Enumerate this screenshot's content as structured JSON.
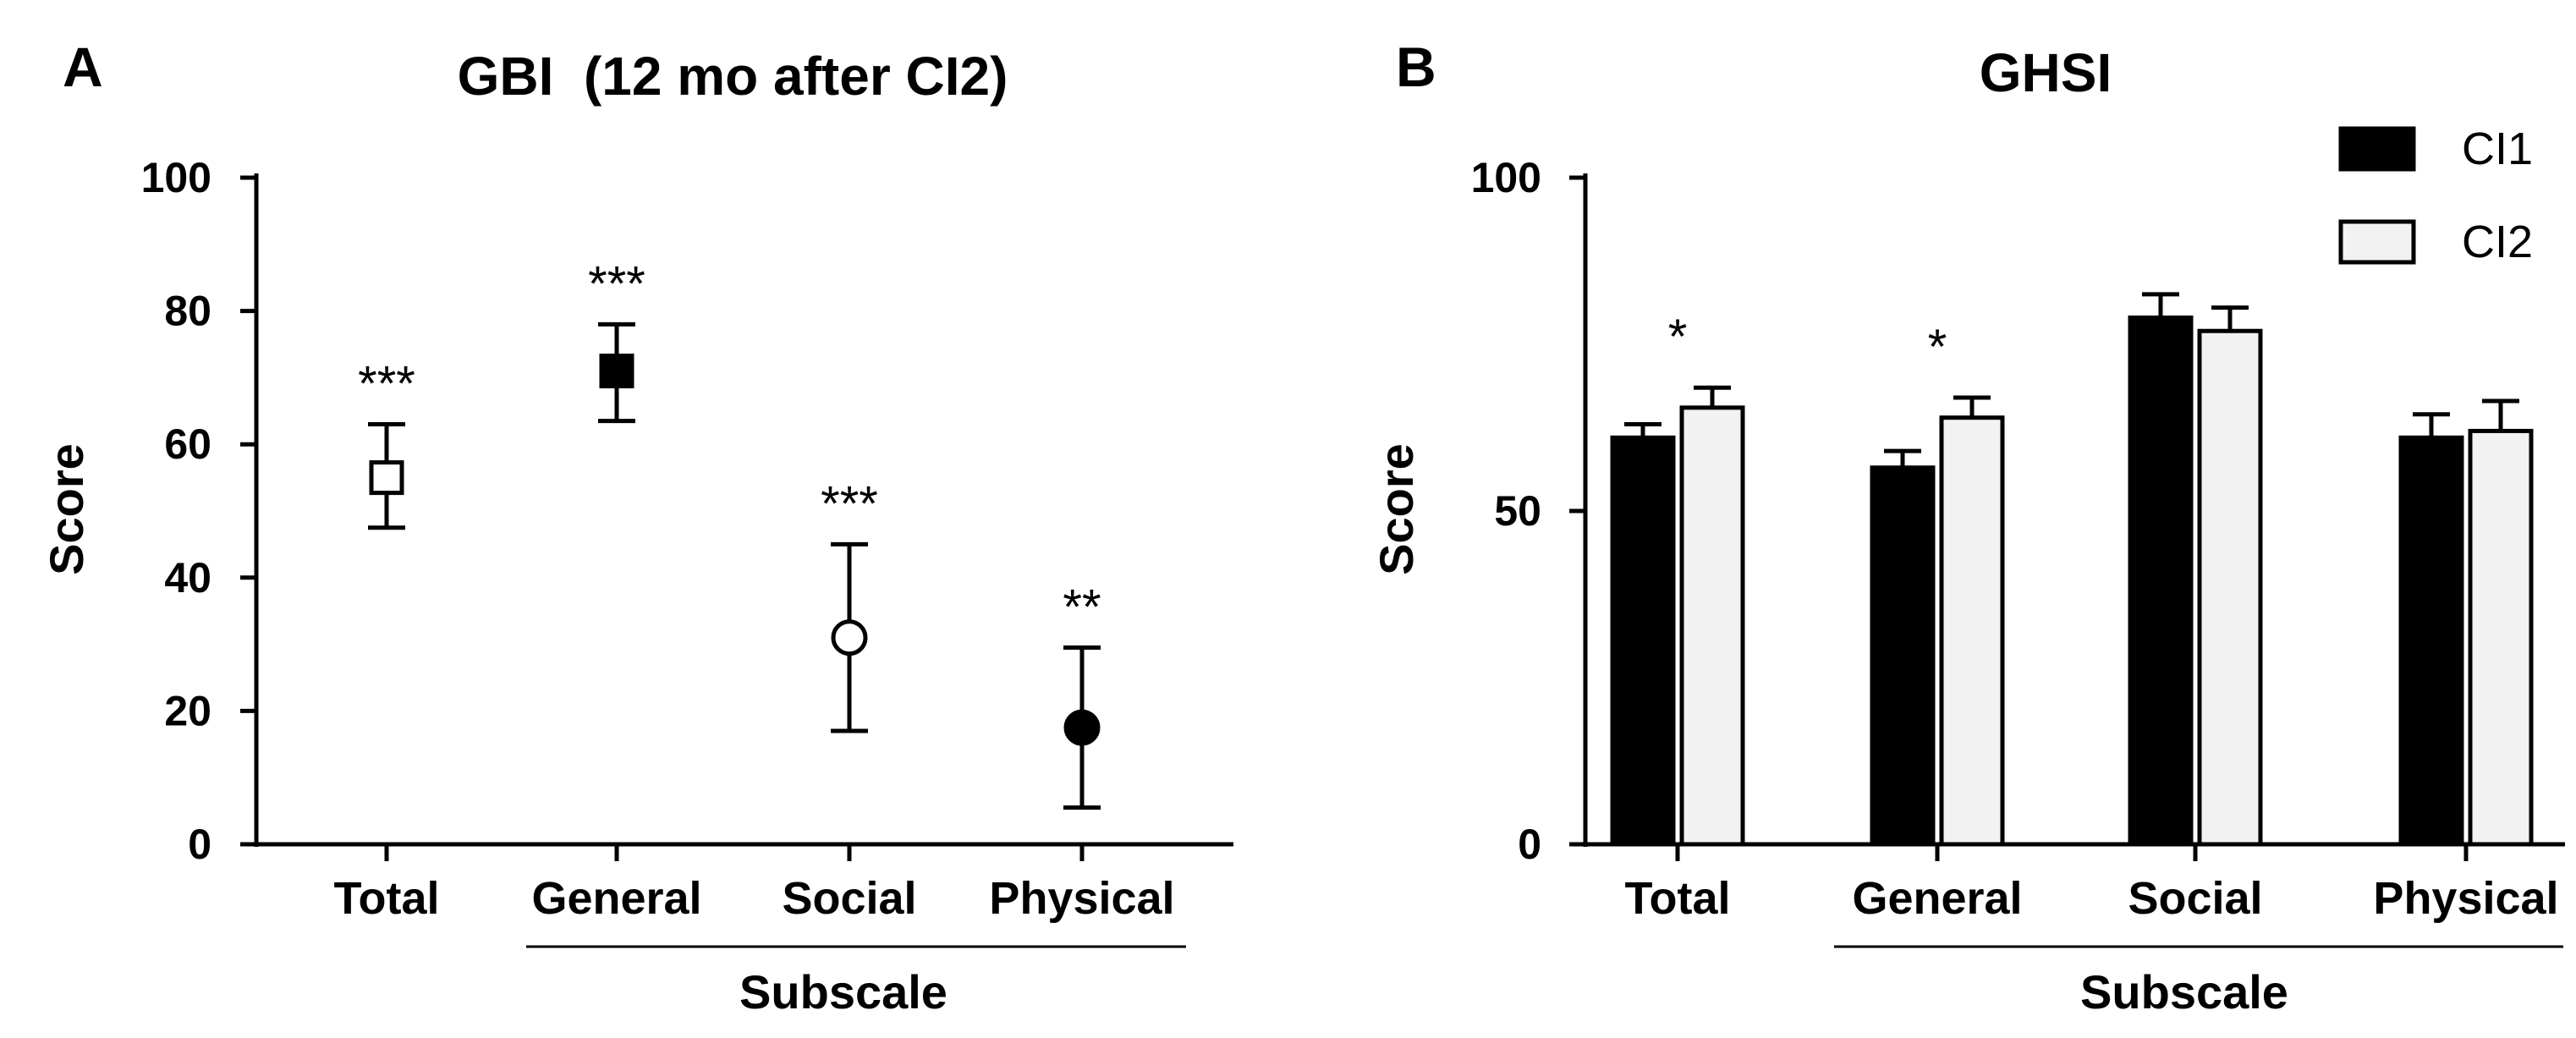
{
  "chart_data": [
    {
      "panel": "A",
      "type": "scatter",
      "title": "GBI  (12 mo after CI2)",
      "xlabel": "Subscale",
      "ylabel": "Score",
      "ylim": [
        0,
        100
      ],
      "yticks": [
        0,
        20,
        40,
        60,
        80,
        100
      ],
      "categories": [
        "Total",
        "General",
        "Social",
        "Physical"
      ],
      "values": [
        55,
        71,
        31,
        17.5
      ],
      "error_low": [
        47.5,
        63.5,
        17,
        5.5
      ],
      "error_high": [
        63,
        78,
        45,
        29.5
      ],
      "markers": [
        "open-square",
        "filled-square",
        "open-circle",
        "filled-circle"
      ],
      "significance": [
        "***",
        "***",
        "***",
        "**"
      ],
      "subscale_bracket": [
        "General",
        "Physical"
      ],
      "grid": false
    },
    {
      "panel": "B",
      "type": "bar",
      "title": "GHSI",
      "xlabel": "Subscale",
      "ylabel": "Score",
      "ylim": [
        0,
        100
      ],
      "yticks": [
        0,
        50,
        100
      ],
      "categories": [
        "Total",
        "General",
        "Social",
        "Physical"
      ],
      "series": [
        {
          "name": "CI1",
          "color": "#000000",
          "values": [
            61,
            56.5,
            79,
            61
          ],
          "error_high": [
            63,
            59,
            82.5,
            64.5
          ]
        },
        {
          "name": "CI2",
          "color": "#f2f2f2",
          "values": [
            65.5,
            64,
            77,
            62
          ],
          "error_high": [
            68.5,
            67,
            80.5,
            66.5
          ]
        }
      ],
      "significance": [
        "*",
        "*",
        "",
        ""
      ],
      "subscale_bracket": [
        "General",
        "Physical"
      ],
      "legend_position": "top-right",
      "grid": false
    }
  ]
}
